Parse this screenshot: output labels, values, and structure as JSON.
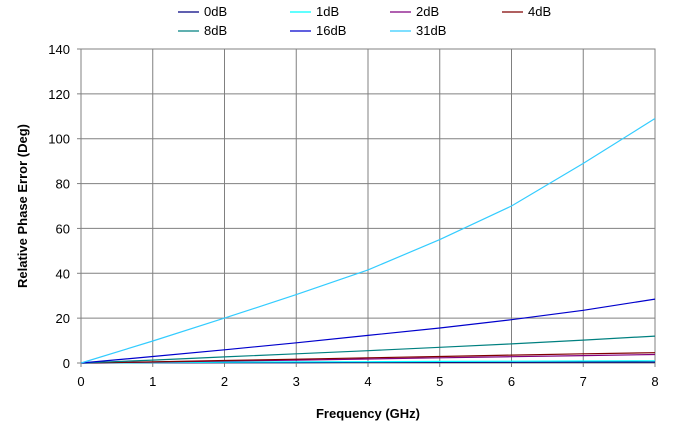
{
  "chart_data": {
    "type": "line",
    "title": "",
    "xlabel": "Frequency (GHz)",
    "ylabel": "Relative Phase Error (Deg)",
    "xlim": [
      0,
      8
    ],
    "ylim": [
      0,
      140
    ],
    "x_ticks": [
      0,
      1,
      2,
      3,
      4,
      5,
      6,
      7,
      8
    ],
    "y_ticks": [
      0,
      20,
      40,
      60,
      80,
      100,
      120,
      140
    ],
    "grid": true,
    "legend_position": "top",
    "x": [
      0,
      1,
      2,
      3,
      4,
      5,
      6,
      7,
      8
    ],
    "series": [
      {
        "name": "0dB",
        "color": "#000080",
        "values": [
          0,
          0.1,
          0.2,
          0.2,
          0.3,
          0.3,
          0.3,
          0.4,
          0.4
        ]
      },
      {
        "name": "1dB",
        "color": "#00FFFF",
        "values": [
          0,
          0.2,
          0.4,
          0.5,
          0.6,
          0.7,
          0.8,
          0.9,
          1.0
        ]
      },
      {
        "name": "2dB",
        "color": "#800080",
        "values": [
          0,
          0.4,
          0.9,
          1.3,
          1.8,
          2.3,
          2.8,
          3.3,
          3.8
        ]
      },
      {
        "name": "4dB",
        "color": "#800000",
        "values": [
          0,
          0.5,
          1.1,
          1.7,
          2.3,
          2.9,
          3.5,
          4.1,
          4.6
        ]
      },
      {
        "name": "8dB",
        "color": "#008080",
        "values": [
          0,
          1.3,
          2.7,
          4.1,
          5.5,
          7.0,
          8.5,
          10.2,
          12.0
        ]
      },
      {
        "name": "16dB",
        "color": "#0000CC",
        "values": [
          0,
          2.9,
          5.9,
          9.0,
          12.3,
          15.6,
          19.3,
          23.5,
          28.5
        ]
      },
      {
        "name": "31dB",
        "color": "#33CCFF",
        "values": [
          0,
          9.8,
          20.0,
          30.5,
          41.5,
          55.0,
          70.0,
          89.0,
          109.0
        ]
      }
    ]
  }
}
